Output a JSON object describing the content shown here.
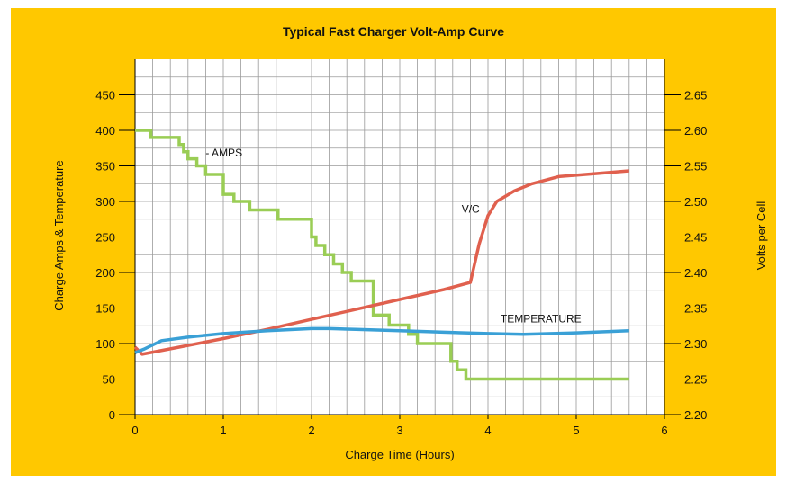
{
  "chart_data": {
    "type": "line",
    "title": "Typical Fast Charger Volt-Amp Curve",
    "xlabel": "Charge Time (Hours)",
    "ylabel_left": "Charge Amps & Temperature",
    "ylabel_right": "Volts per Cell",
    "xlim": [
      0,
      6
    ],
    "ylim_left": [
      0,
      500
    ],
    "ylim_right": [
      2.2,
      2.7
    ],
    "x_ticks": [
      "0",
      "1",
      "2",
      "3",
      "4",
      "5",
      "6"
    ],
    "y_left_ticks": [
      "0",
      "50",
      "100",
      "150",
      "200",
      "250",
      "300",
      "350",
      "400",
      "450"
    ],
    "y_right_ticks": [
      "2.20",
      "2.25",
      "2.30",
      "2.35",
      "2.40",
      "2.45",
      "2.50",
      "2.55",
      "2.60",
      "2.65"
    ],
    "grid": true,
    "background_color": "#ffc800",
    "plot_background": "#ffffff",
    "series": [
      {
        "name": "AMPS",
        "axis": "left",
        "step": true,
        "color": "#9acd55",
        "points": [
          [
            0,
            400
          ],
          [
            0.18,
            400
          ],
          [
            0.18,
            390
          ],
          [
            0.5,
            390
          ],
          [
            0.5,
            380
          ],
          [
            0.55,
            380
          ],
          [
            0.55,
            370
          ],
          [
            0.6,
            370
          ],
          [
            0.6,
            360
          ],
          [
            0.7,
            360
          ],
          [
            0.7,
            350
          ],
          [
            0.8,
            350
          ],
          [
            0.8,
            338
          ],
          [
            1.0,
            338
          ],
          [
            1.0,
            310
          ],
          [
            1.12,
            310
          ],
          [
            1.12,
            300
          ],
          [
            1.3,
            300
          ],
          [
            1.3,
            288
          ],
          [
            1.62,
            288
          ],
          [
            1.62,
            275
          ],
          [
            2.0,
            275
          ],
          [
            2.0,
            250
          ],
          [
            2.05,
            250
          ],
          [
            2.05,
            238
          ],
          [
            2.15,
            238
          ],
          [
            2.15,
            225
          ],
          [
            2.25,
            225
          ],
          [
            2.25,
            212
          ],
          [
            2.35,
            212
          ],
          [
            2.35,
            200
          ],
          [
            2.45,
            200
          ],
          [
            2.45,
            188
          ],
          [
            2.7,
            188
          ],
          [
            2.7,
            140
          ],
          [
            2.88,
            140
          ],
          [
            2.88,
            126
          ],
          [
            3.1,
            126
          ],
          [
            3.1,
            113
          ],
          [
            3.2,
            113
          ],
          [
            3.2,
            100
          ],
          [
            3.58,
            100
          ],
          [
            3.58,
            75
          ],
          [
            3.65,
            75
          ],
          [
            3.65,
            63
          ],
          [
            3.75,
            63
          ],
          [
            3.75,
            50
          ],
          [
            5.6,
            50
          ]
        ]
      },
      {
        "name": "V/C",
        "axis": "right",
        "color": "#e0604e",
        "points": [
          [
            0,
            2.295
          ],
          [
            0.08,
            2.285
          ],
          [
            0.5,
            2.295
          ],
          [
            1.0,
            2.307
          ],
          [
            1.5,
            2.32
          ],
          [
            2.0,
            2.334
          ],
          [
            2.5,
            2.348
          ],
          [
            3.0,
            2.362
          ],
          [
            3.5,
            2.376
          ],
          [
            3.8,
            2.386
          ],
          [
            3.9,
            2.44
          ],
          [
            4.0,
            2.48
          ],
          [
            4.1,
            2.5
          ],
          [
            4.3,
            2.515
          ],
          [
            4.5,
            2.525
          ],
          [
            4.8,
            2.535
          ],
          [
            5.2,
            2.539
          ],
          [
            5.6,
            2.543
          ]
        ]
      },
      {
        "name": "TEMPERATURE",
        "axis": "left",
        "color": "#3aa0d6",
        "points": [
          [
            0,
            87
          ],
          [
            0.1,
            92
          ],
          [
            0.3,
            104
          ],
          [
            0.6,
            109
          ],
          [
            1.0,
            114
          ],
          [
            1.5,
            118
          ],
          [
            2.0,
            121
          ],
          [
            2.2,
            121
          ],
          [
            2.5,
            120
          ],
          [
            3.0,
            118
          ],
          [
            3.5,
            116
          ],
          [
            4.0,
            114
          ],
          [
            4.4,
            113
          ],
          [
            5.0,
            115
          ],
          [
            5.6,
            118
          ]
        ]
      }
    ],
    "annotations": [
      {
        "text": "- AMPS",
        "x": 0.8,
        "y": 363,
        "axis": "left"
      },
      {
        "text": "V/C -",
        "x": 3.98,
        "y": 2.484,
        "axis": "right"
      },
      {
        "text": "TEMPERATURE",
        "x": 4.6,
        "y": 130,
        "axis": "left"
      }
    ]
  }
}
